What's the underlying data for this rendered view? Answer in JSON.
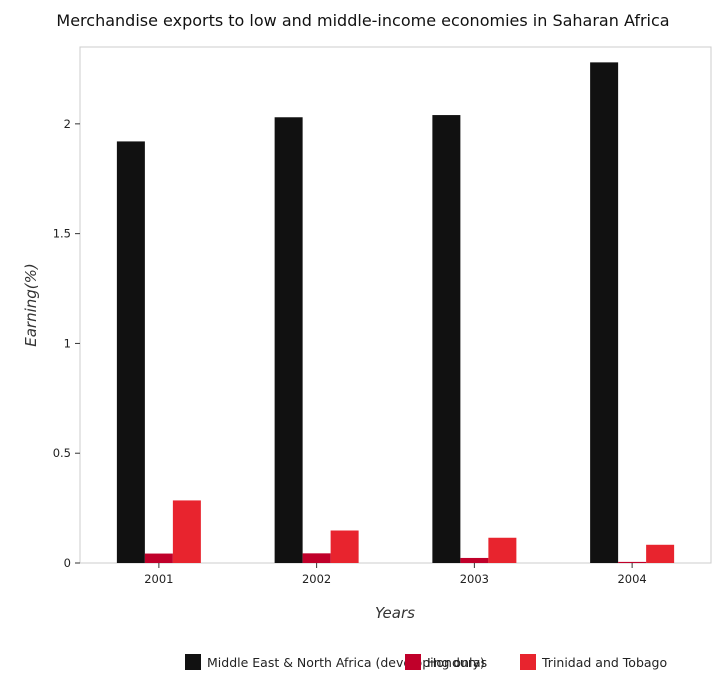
{
  "chart_data": {
    "type": "bar",
    "title": "Merchandise exports to low and middle-income economies in Saharan Africa",
    "xlabel": "Years",
    "ylabel": "Earning(%)",
    "categories": [
      "2001",
      "2002",
      "2003",
      "2004"
    ],
    "ylim": [
      0,
      2.35
    ],
    "yticks": [
      "0",
      "0.5",
      "1",
      "1.5",
      "2"
    ],
    "grid": false,
    "legend_position": "bottom",
    "series": [
      {
        "name": "Middle East & North Africa (developing only)",
        "color": "#111111",
        "values": [
          1.92,
          2.03,
          2.04,
          2.28
        ]
      },
      {
        "name": "Honduras",
        "color": "#c0002a",
        "values": [
          0.043,
          0.044,
          0.023,
          0.005
        ]
      },
      {
        "name": "Trinidad and Tobago",
        "color": "#e8242e",
        "values": [
          0.285,
          0.148,
          0.115,
          0.083
        ]
      }
    ]
  }
}
